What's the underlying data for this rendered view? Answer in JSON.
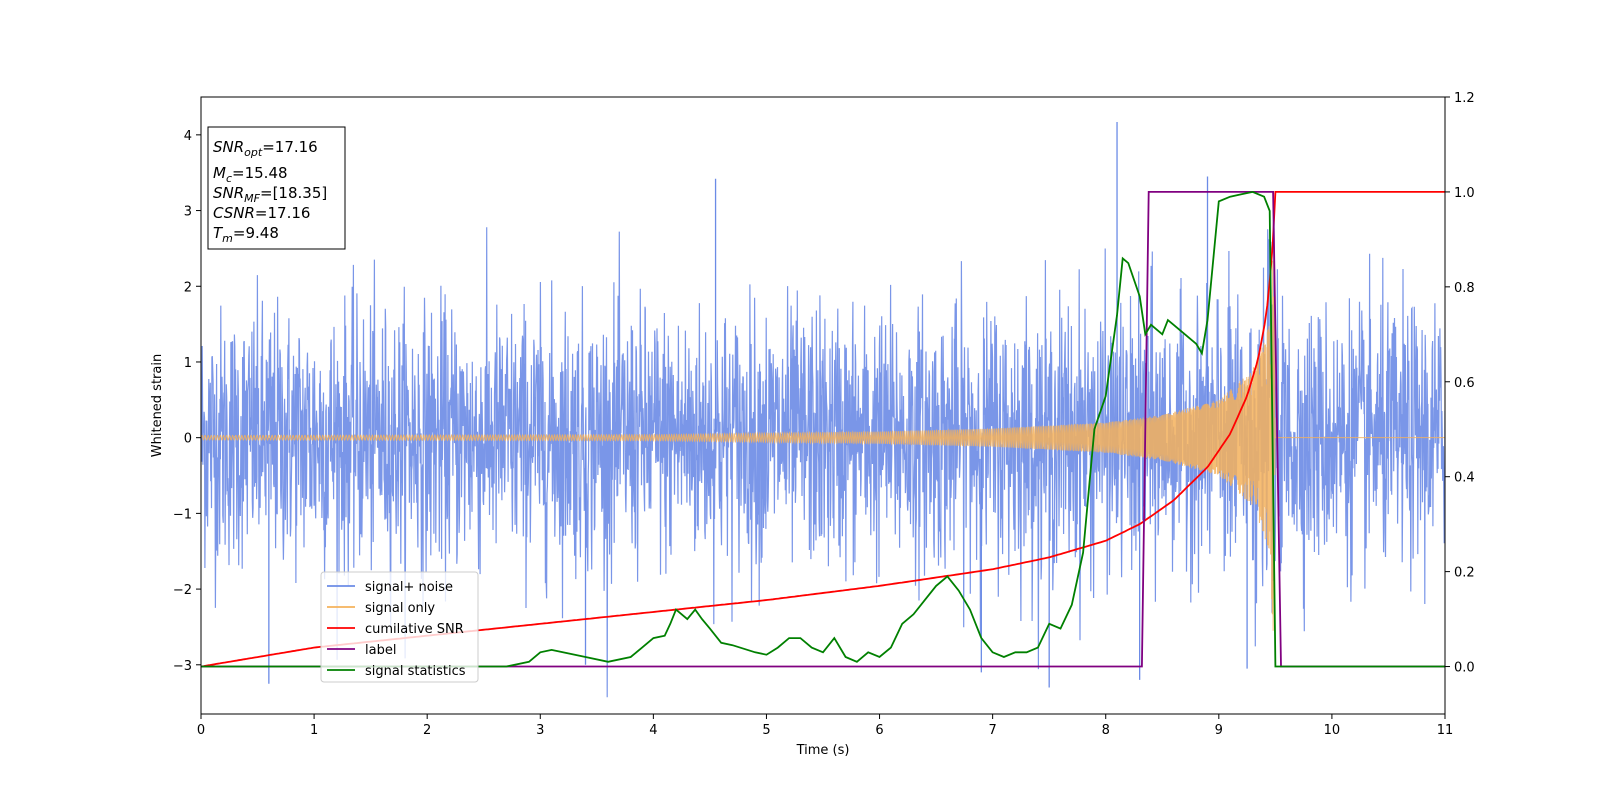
{
  "chart_data": {
    "type": "line",
    "xlabel": "Time (s)",
    "ylabel": "Whitened strain",
    "xlim": [
      0,
      11
    ],
    "ylim_left": [
      -3.65,
      4.5
    ],
    "ylim_right": [
      -0.1,
      1.2
    ],
    "x_ticks": [
      "0",
      "1",
      "2",
      "3",
      "4",
      "5",
      "6",
      "7",
      "8",
      "9",
      "10",
      "11"
    ],
    "y_left_ticks": [
      "−3",
      "−2",
      "−1",
      "0",
      "1",
      "2",
      "3",
      "4"
    ],
    "y_right_ticks": [
      "0.0",
      "0.2",
      "0.4",
      "0.6",
      "0.8",
      "1.0",
      "1.2"
    ],
    "colors": {
      "noise": "#6b8be6",
      "signal": "#f5b25c",
      "csnr": "#ff0000",
      "label": "#800080",
      "stats": "#008000"
    },
    "info_box": {
      "snr_opt": "=17.16",
      "mc": "=15.48",
      "snr_mf": "=[18.35]",
      "csnr": "=17.16",
      "tm": "=9.48"
    },
    "legend": {
      "position": "lower-left",
      "entries": [
        "signal+ noise",
        "signal only",
        "cumilative SNR",
        "label",
        "signal statistics"
      ]
    },
    "series": [
      {
        "name": "signal+ noise",
        "axis": "left",
        "description_values": "white noise ~ amplitude ±2.5 with spikes up to 4.17 near t=8.1 and -3.3 near t=7.5"
      },
      {
        "name": "signal only",
        "axis": "left",
        "envelope": [
          [
            0,
            0.03
          ],
          [
            4,
            0.04
          ],
          [
            6,
            0.08
          ],
          [
            7,
            0.12
          ],
          [
            8,
            0.2
          ],
          [
            8.5,
            0.3
          ],
          [
            9,
            0.5
          ],
          [
            9.3,
            0.9
          ],
          [
            9.45,
            1.5
          ],
          [
            9.48,
            2.6
          ],
          [
            9.5,
            0
          ]
        ]
      },
      {
        "name": "cumilative SNR",
        "axis": "right",
        "x": [
          0,
          1,
          2,
          3,
          4,
          5,
          6,
          7,
          7.5,
          8,
          8.3,
          8.6,
          8.9,
          9.1,
          9.25,
          9.35,
          9.42,
          9.47,
          9.5,
          11
        ],
        "y": [
          0.0,
          0.04,
          0.065,
          0.09,
          0.115,
          0.14,
          0.17,
          0.205,
          0.23,
          0.265,
          0.3,
          0.35,
          0.42,
          0.49,
          0.57,
          0.65,
          0.74,
          0.86,
          1.0,
          1.0
        ]
      },
      {
        "name": "label",
        "axis": "right",
        "x": [
          0,
          8.32,
          8.38,
          9.44,
          9.48,
          9.55,
          11
        ],
        "y": [
          0,
          0,
          1,
          1,
          1,
          0,
          0
        ]
      },
      {
        "name": "signal statistics",
        "axis": "right",
        "x": [
          0,
          2.7,
          2.9,
          3.0,
          3.1,
          3.2,
          3.4,
          3.6,
          3.8,
          3.9,
          4.0,
          4.1,
          4.15,
          4.2,
          4.3,
          4.37,
          4.43,
          4.5,
          4.6,
          4.7,
          4.9,
          5.0,
          5.1,
          5.2,
          5.3,
          5.4,
          5.5,
          5.6,
          5.7,
          5.8,
          5.9,
          6.0,
          6.1,
          6.2,
          6.3,
          6.4,
          6.5,
          6.6,
          6.7,
          6.8,
          6.9,
          7.0,
          7.1,
          7.2,
          7.3,
          7.4,
          7.5,
          7.6,
          7.7,
          7.8,
          7.9,
          8.0,
          8.1,
          8.15,
          8.2,
          8.3,
          8.35,
          8.4,
          8.5,
          8.55,
          8.6,
          8.7,
          8.8,
          8.85,
          8.9,
          9.0,
          9.1,
          9.2,
          9.3,
          9.4,
          9.45,
          9.5,
          9.55,
          11
        ],
        "y": [
          0,
          0,
          0.01,
          0.03,
          0.035,
          0.03,
          0.02,
          0.01,
          0.02,
          0.04,
          0.06,
          0.065,
          0.09,
          0.12,
          0.1,
          0.12,
          0.1,
          0.08,
          0.05,
          0.045,
          0.03,
          0.025,
          0.04,
          0.06,
          0.06,
          0.04,
          0.03,
          0.06,
          0.02,
          0.01,
          0.03,
          0.02,
          0.04,
          0.09,
          0.11,
          0.14,
          0.17,
          0.19,
          0.16,
          0.12,
          0.06,
          0.03,
          0.02,
          0.03,
          0.03,
          0.04,
          0.09,
          0.08,
          0.13,
          0.24,
          0.5,
          0.57,
          0.74,
          0.86,
          0.85,
          0.78,
          0.7,
          0.72,
          0.7,
          0.73,
          0.72,
          0.7,
          0.68,
          0.66,
          0.73,
          0.98,
          0.99,
          0.995,
          1.0,
          0.99,
          0.96,
          0.0,
          0.0,
          0.0
        ]
      }
    ]
  }
}
